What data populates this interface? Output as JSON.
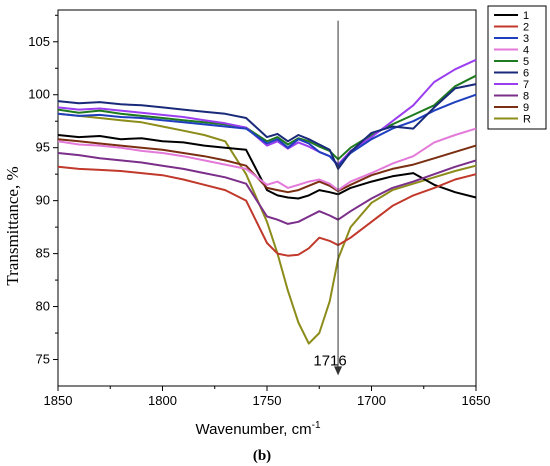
{
  "chart_data": {
    "type": "line",
    "xlabel": "Wavenumber, cm",
    "xlabel_superscript": "-1",
    "ylabel": "Transmittance, %",
    "caption": "(b)",
    "x_reversed": true,
    "xlim": [
      1850,
      1650
    ],
    "ylim": [
      72.5,
      108
    ],
    "x_ticks": [
      1850,
      1800,
      1750,
      1700,
      1650
    ],
    "y_ticks": [
      75,
      80,
      85,
      90,
      95,
      100,
      105
    ],
    "grid": false,
    "legend_position": "top-right",
    "annotation": {
      "label": "1716",
      "x": 1716,
      "y_from": 107,
      "y_to": 73.5
    },
    "x": [
      1850,
      1840,
      1830,
      1820,
      1810,
      1800,
      1790,
      1780,
      1770,
      1760,
      1750,
      1745,
      1740,
      1735,
      1730,
      1725,
      1720,
      1716,
      1710,
      1700,
      1690,
      1680,
      1670,
      1660,
      1650
    ],
    "series": [
      {
        "name": "1",
        "color": "#000000",
        "values": [
          96.2,
          96.0,
          96.1,
          95.8,
          95.9,
          95.6,
          95.5,
          95.2,
          95.0,
          94.8,
          91.0,
          90.5,
          90.3,
          90.2,
          90.5,
          91.0,
          90.8,
          90.6,
          91.2,
          91.8,
          92.3,
          92.6,
          91.5,
          90.8,
          90.3
        ]
      },
      {
        "name": "2",
        "color": "#c0392b",
        "values": [
          93.2,
          93.0,
          92.9,
          92.8,
          92.6,
          92.4,
          92.0,
          91.5,
          91.0,
          90.0,
          86.0,
          85.0,
          84.8,
          84.9,
          85.5,
          86.5,
          86.2,
          85.8,
          86.5,
          88.0,
          89.5,
          90.5,
          91.2,
          92.0,
          92.5
        ]
      },
      {
        "name": "3",
        "color": "#1f3fbf",
        "values": [
          98.2,
          98.0,
          98.1,
          97.9,
          97.8,
          97.6,
          97.4,
          97.2,
          97.0,
          96.8,
          95.4,
          95.8,
          95.0,
          95.8,
          95.4,
          94.6,
          94.2,
          93.3,
          94.5,
          95.8,
          96.8,
          97.5,
          98.5,
          99.3,
          100.0
        ]
      },
      {
        "name": "4",
        "color": "#e37ad9",
        "values": [
          95.6,
          95.3,
          95.2,
          95.0,
          94.7,
          94.5,
          94.2,
          93.8,
          93.4,
          93.0,
          91.5,
          91.8,
          91.2,
          91.5,
          91.8,
          92.0,
          91.6,
          91.0,
          91.8,
          92.6,
          93.5,
          94.2,
          95.5,
          96.2,
          96.8
        ]
      },
      {
        "name": "5",
        "color": "#1e7a1e",
        "values": [
          98.6,
          98.3,
          98.5,
          98.2,
          98.0,
          97.8,
          97.6,
          97.4,
          97.2,
          96.9,
          95.6,
          96.0,
          95.3,
          95.9,
          95.6,
          95.1,
          94.7,
          93.9,
          95.0,
          96.2,
          97.2,
          98.1,
          99.0,
          100.8,
          101.8
        ]
      },
      {
        "name": "6",
        "color": "#1a2a7a",
        "values": [
          99.4,
          99.2,
          99.3,
          99.1,
          99.0,
          98.8,
          98.6,
          98.4,
          98.2,
          97.8,
          96.0,
          96.3,
          95.6,
          96.2,
          95.8,
          95.3,
          94.8,
          93.0,
          94.6,
          96.4,
          97.0,
          96.8,
          98.8,
          100.6,
          101.0
        ]
      },
      {
        "name": "7",
        "color": "#9b3ef0",
        "values": [
          98.8,
          98.6,
          98.7,
          98.5,
          98.3,
          98.1,
          97.9,
          97.6,
          97.3,
          96.9,
          95.2,
          95.6,
          94.9,
          95.5,
          95.1,
          94.6,
          94.2,
          93.4,
          94.7,
          96.0,
          97.5,
          99.0,
          101.2,
          102.4,
          103.3
        ]
      },
      {
        "name": "8",
        "color": "#7b2f8a",
        "values": [
          94.5,
          94.3,
          94.0,
          93.8,
          93.6,
          93.3,
          93.0,
          92.6,
          92.2,
          91.6,
          88.5,
          88.2,
          87.8,
          88.0,
          88.5,
          89.0,
          88.6,
          88.2,
          89.0,
          90.2,
          91.2,
          91.8,
          92.5,
          93.2,
          93.8
        ]
      },
      {
        "name": "9",
        "color": "#7a2e12",
        "values": [
          95.8,
          95.6,
          95.4,
          95.2,
          95.0,
          94.8,
          94.5,
          94.2,
          93.8,
          93.3,
          91.2,
          91.0,
          90.8,
          91.0,
          91.4,
          91.8,
          91.4,
          90.9,
          91.5,
          92.4,
          93.0,
          93.4,
          94.0,
          94.6,
          95.2
        ]
      },
      {
        "name": "R",
        "color": "#8c8c1a",
        "values": [
          98.2,
          98.0,
          97.8,
          97.6,
          97.4,
          97.0,
          96.6,
          96.2,
          95.6,
          92.5,
          88.0,
          85.0,
          81.5,
          78.5,
          76.5,
          77.5,
          80.5,
          84.5,
          87.5,
          89.8,
          91.0,
          91.6,
          92.2,
          92.8,
          93.3
        ]
      }
    ]
  }
}
